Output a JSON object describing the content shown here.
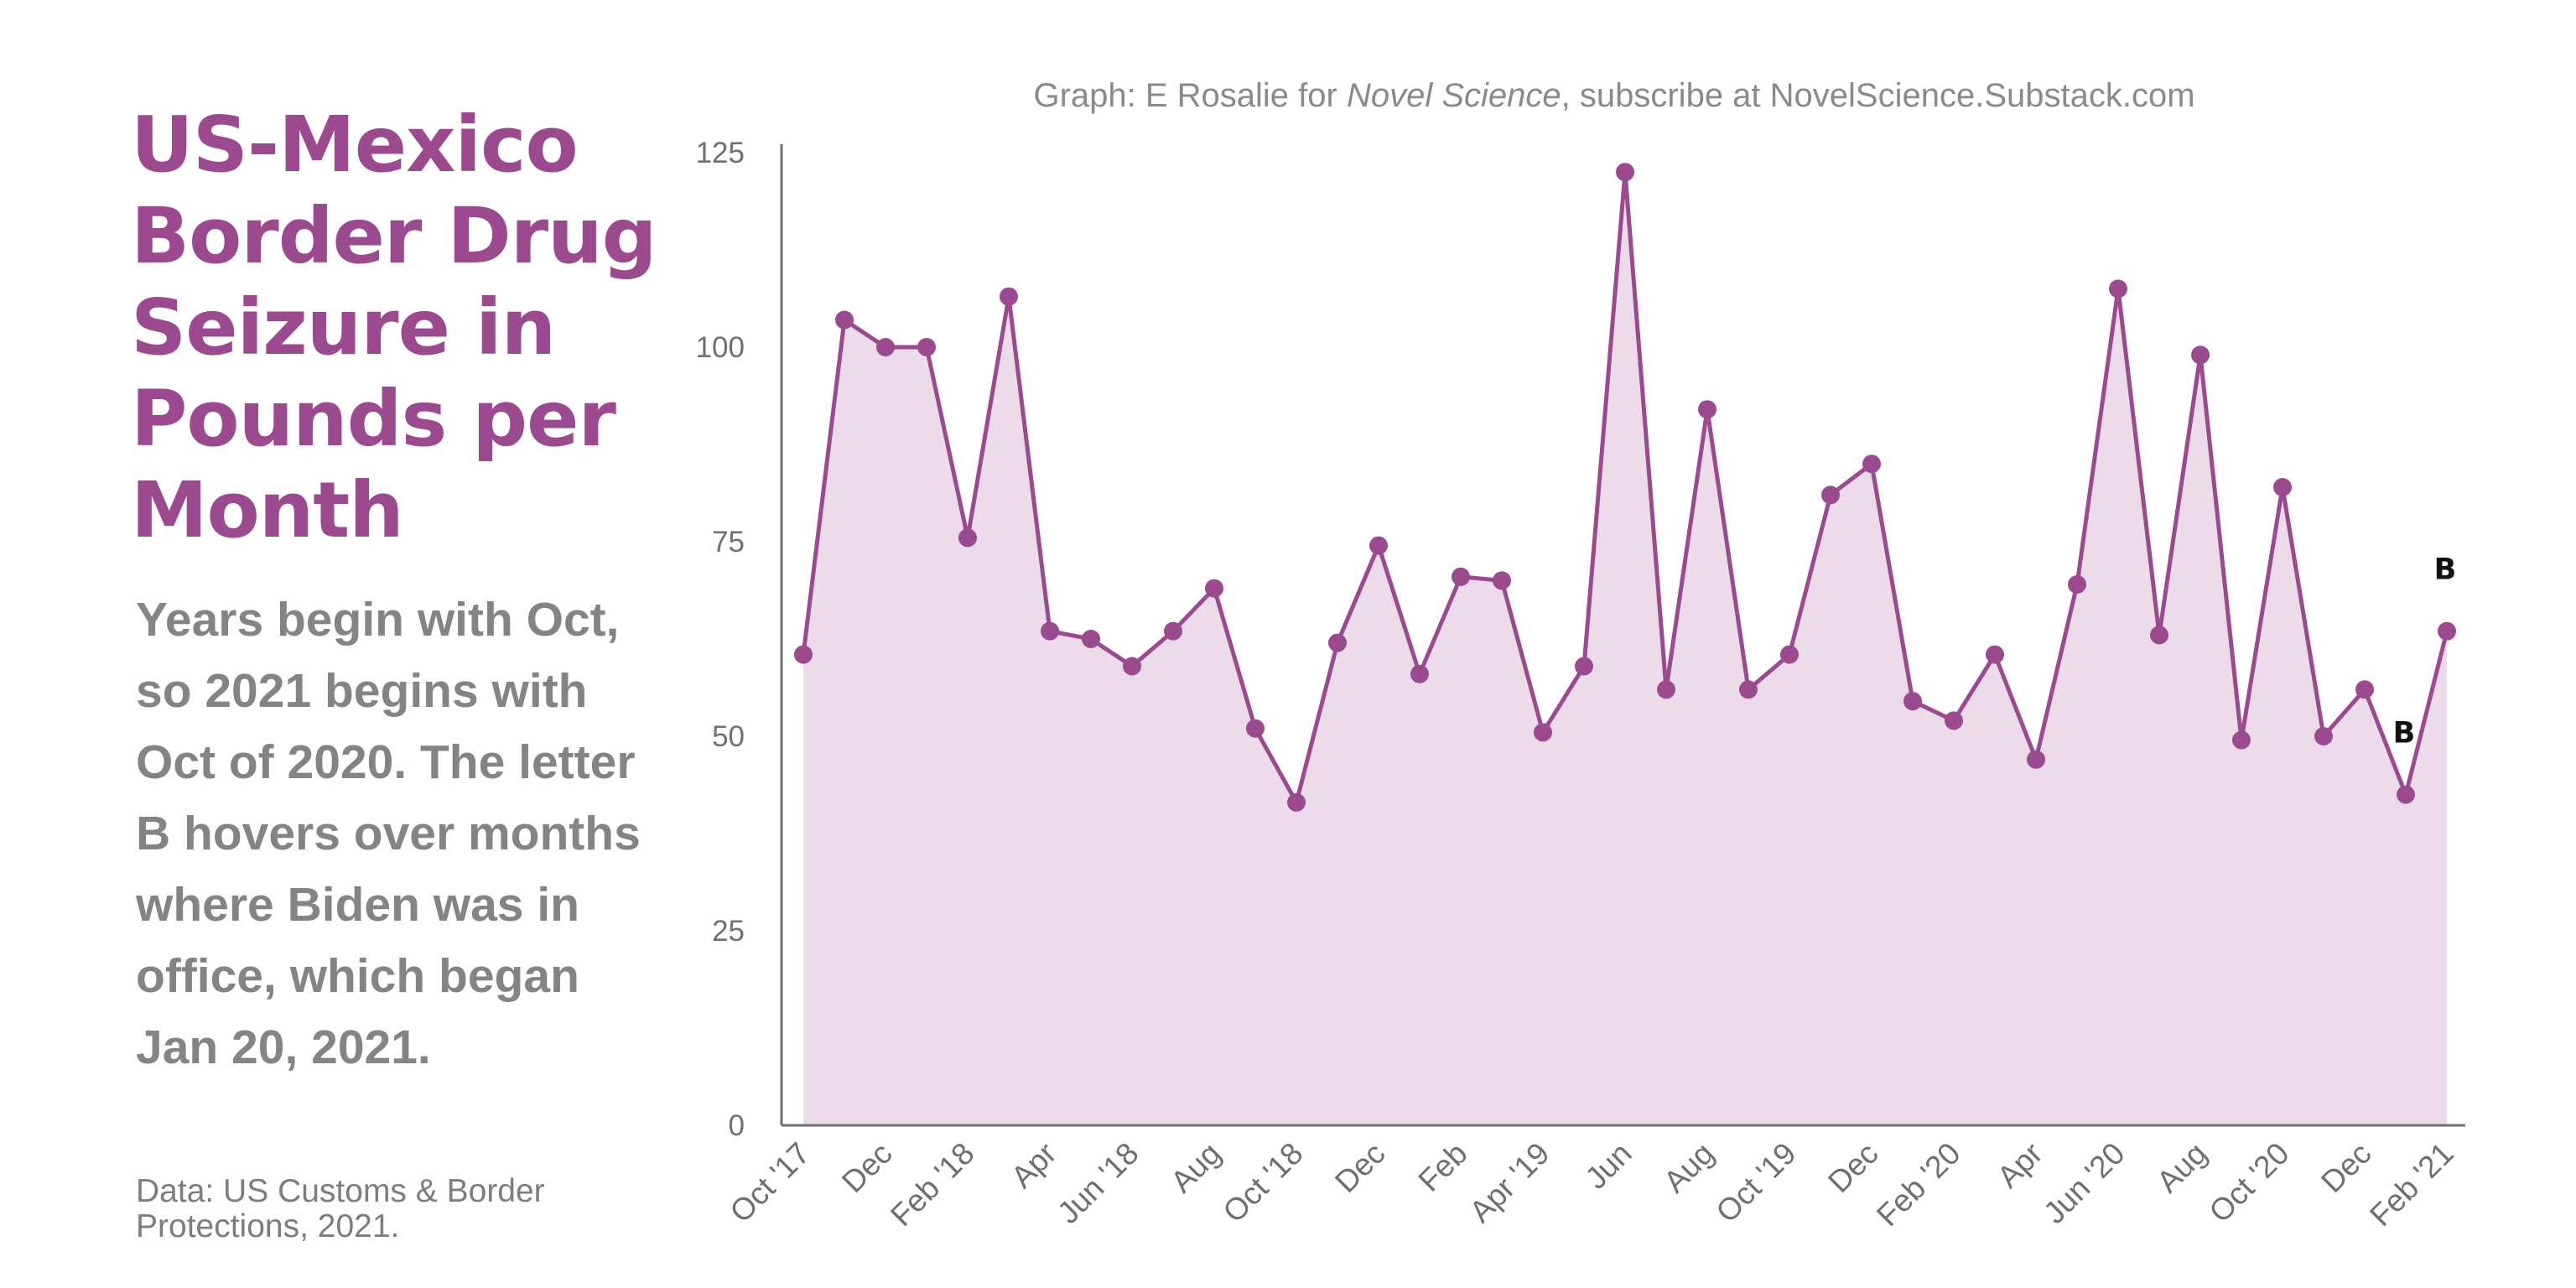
{
  "left": {
    "title": "US-Mexico Border Drug Seizure in Pounds per Month",
    "subtitle": "Years begin with Oct, so 2021 begins with Oct of 2020. The letter B hovers over months where Biden was in office, which began Jan 20, 2021.",
    "source": "Data: US Customs & Border Protections, 2021."
  },
  "caption": {
    "prefix": "Graph: E Rosalie for ",
    "publication": "Novel Science",
    "suffix": ", subscribe at NovelScience.Substack.com"
  },
  "colors": {
    "accent": "#9b4a8f",
    "fill": "#ecdcea",
    "axis": "#6f6f6f"
  },
  "chart_data": {
    "type": "area",
    "ylim": [
      0,
      125
    ],
    "yticks": [
      0,
      25,
      50,
      75,
      100,
      125
    ],
    "x": [
      "Oct '17",
      "Nov '17",
      "Dec '17",
      "Jan '18",
      "Feb '18",
      "Mar '18",
      "Apr '18",
      "May '18",
      "Jun '18",
      "Jul '18",
      "Aug '18",
      "Sep '18",
      "Oct '18",
      "Nov '18",
      "Dec '18",
      "Jan '19",
      "Feb '19",
      "Mar '19",
      "Apr '19",
      "May '19",
      "Jun '19",
      "Jul '19",
      "Aug '19",
      "Sep '19",
      "Oct '19",
      "Nov '19",
      "Dec '19",
      "Jan '20",
      "Feb '20",
      "Mar '20",
      "Apr '20",
      "May '20",
      "Jun '20",
      "Jul '20",
      "Aug '20",
      "Sep '20",
      "Oct '20",
      "Nov '20",
      "Dec '20",
      "Jan '21",
      "Feb '21"
    ],
    "values": [
      60.5,
      103.5,
      100,
      100,
      75.5,
      106.5,
      63.5,
      62.5,
      59,
      63.5,
      69,
      51,
      41.5,
      62,
      74.5,
      58,
      70.5,
      70,
      50.5,
      59,
      122.5,
      56,
      92,
      56,
      60.5,
      81,
      85,
      54.5,
      52,
      60.5,
      47,
      69.5,
      107.5,
      63,
      99,
      49.5,
      82,
      50,
      56,
      42.5,
      63.5
    ],
    "tick_labels": [
      {
        "index": 0,
        "label": "Oct '17"
      },
      {
        "index": 2,
        "label": "Dec"
      },
      {
        "index": 4,
        "label": "Feb '18"
      },
      {
        "index": 6,
        "label": "Apr"
      },
      {
        "index": 8,
        "label": "Jun '18"
      },
      {
        "index": 10,
        "label": "Aug"
      },
      {
        "index": 12,
        "label": "Oct '18"
      },
      {
        "index": 14,
        "label": "Dec"
      },
      {
        "index": 16,
        "label": "Feb"
      },
      {
        "index": 18,
        "label": "Apr '19"
      },
      {
        "index": 20,
        "label": "Jun"
      },
      {
        "index": 22,
        "label": "Aug"
      },
      {
        "index": 24,
        "label": "Oct '19"
      },
      {
        "index": 26,
        "label": "Dec"
      },
      {
        "index": 28,
        "label": "Feb '20"
      },
      {
        "index": 30,
        "label": "Apr"
      },
      {
        "index": 32,
        "label": "Jun '20"
      },
      {
        "index": 34,
        "label": "Aug"
      },
      {
        "index": 36,
        "label": "Oct '20"
      },
      {
        "index": 38,
        "label": "Dec"
      },
      {
        "index": 40,
        "label": "Feb '21"
      }
    ],
    "annotations": [
      {
        "index": 39,
        "text": "B"
      },
      {
        "index": 40,
        "text": "B"
      }
    ],
    "grid": false
  }
}
